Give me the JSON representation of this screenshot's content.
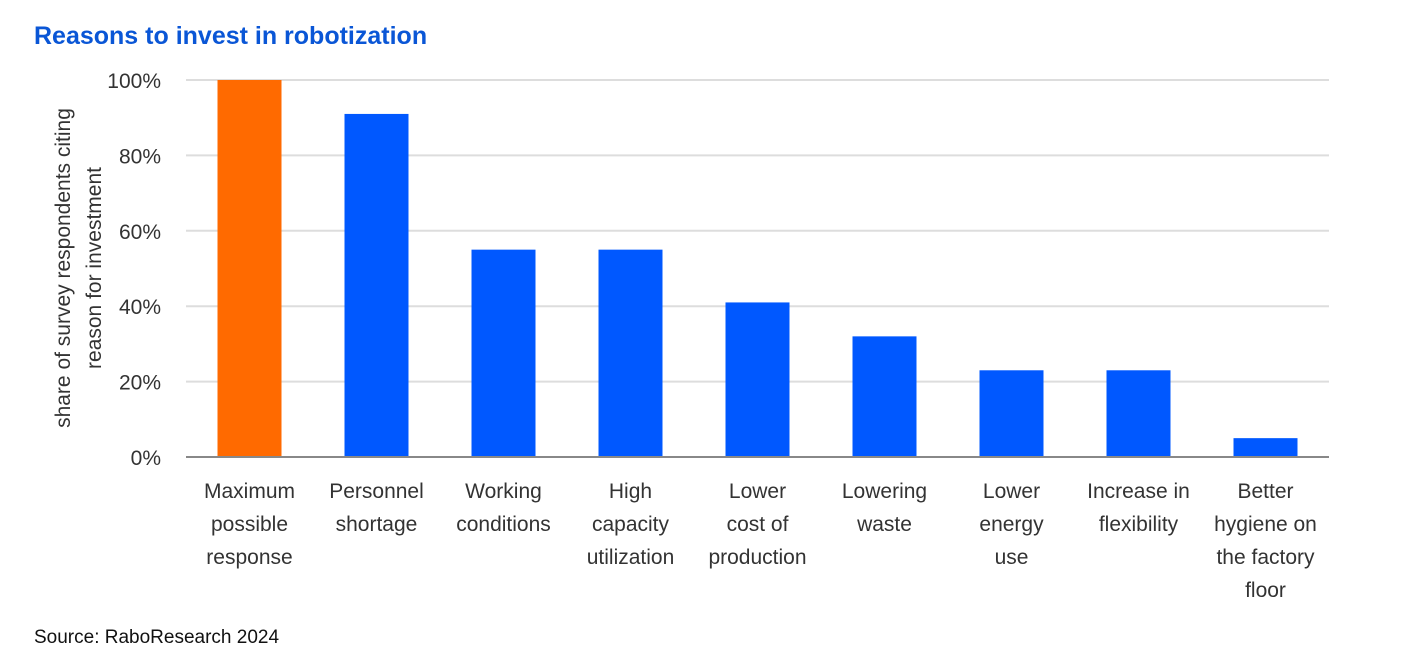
{
  "header": {
    "title": "Reasons to invest in robotization"
  },
  "footer": {
    "source": "Source: RaboResearch 2024"
  },
  "colors": {
    "highlight": "#ff6a00",
    "bar": "#0058ff",
    "grid": "#dddddd",
    "axis": "#888888",
    "title": "#0a56d6"
  },
  "chart_data": {
    "type": "bar",
    "title": "Reasons to invest in robotization",
    "xlabel": "",
    "ylabel_lines": [
      "share of survey respondents citing",
      "reason for investment"
    ],
    "ylim": [
      0,
      100
    ],
    "yticks": [
      0,
      20,
      40,
      60,
      80,
      100
    ],
    "ytick_labels": [
      "0%",
      "20%",
      "40%",
      "60%",
      "80%",
      "100%"
    ],
    "grid": true,
    "categories": [
      [
        "Maximum",
        "possible",
        "response"
      ],
      [
        "Personnel",
        "shortage"
      ],
      [
        "Working",
        "conditions"
      ],
      [
        "High",
        "capacity",
        "utilization"
      ],
      [
        "Lower",
        "cost of",
        "production"
      ],
      [
        "Lowering",
        "waste"
      ],
      [
        "Lower",
        "energy",
        "use"
      ],
      [
        "Increase in",
        "flexibility"
      ],
      [
        "Better",
        "hygiene on",
        "the factory",
        "floor"
      ]
    ],
    "values": [
      100,
      91,
      55,
      55,
      41,
      32,
      23,
      23,
      5
    ],
    "highlight_index": 0
  }
}
